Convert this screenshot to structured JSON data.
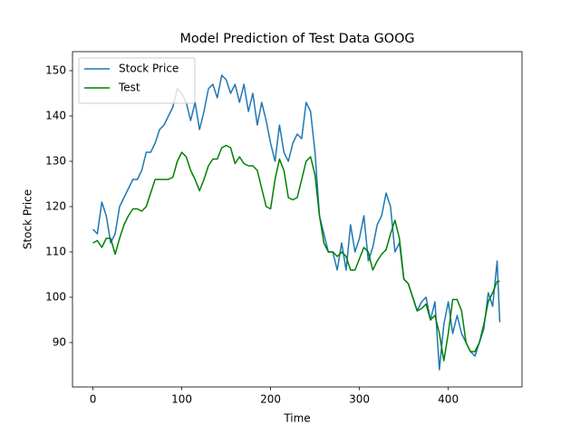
{
  "chart_data": {
    "type": "line",
    "title": "Model Prediction of Test Data GOOG",
    "x_label": "Time",
    "y_label": "Stock Price",
    "x": [
      0,
      5,
      10,
      15,
      20,
      25,
      30,
      35,
      40,
      45,
      50,
      55,
      60,
      65,
      70,
      75,
      80,
      85,
      90,
      95,
      100,
      105,
      110,
      115,
      120,
      125,
      130,
      135,
      140,
      145,
      150,
      155,
      160,
      165,
      170,
      175,
      180,
      185,
      190,
      195,
      200,
      205,
      210,
      215,
      220,
      225,
      230,
      235,
      240,
      245,
      250,
      255,
      260,
      265,
      270,
      275,
      280,
      285,
      290,
      295,
      300,
      305,
      310,
      315,
      320,
      325,
      330,
      335,
      340,
      345,
      350,
      355,
      360,
      365,
      370,
      375,
      380,
      385,
      390,
      395,
      400,
      405,
      410,
      415,
      420,
      425,
      430,
      435,
      440,
      445,
      450,
      455,
      458
    ],
    "series": [
      {
        "name": "Stock Price",
        "color": "#1f77b4",
        "values": [
          115,
          114,
          121,
          118,
          112,
          114,
          120,
          122,
          124,
          126,
          126,
          128,
          132,
          132,
          134,
          137,
          138,
          140,
          142,
          146,
          145,
          143,
          139,
          143,
          137,
          141,
          146,
          147,
          144,
          149,
          148,
          145,
          147,
          143,
          147,
          141,
          145,
          138,
          143,
          139,
          134,
          130,
          138,
          132,
          130,
          134,
          136,
          135,
          143,
          141,
          132,
          118,
          114,
          110,
          110,
          106,
          112,
          106,
          116,
          110,
          113,
          118,
          108,
          111,
          116,
          118,
          123,
          120,
          110,
          112,
          104,
          103,
          100,
          97,
          99,
          100,
          95,
          99,
          84,
          94,
          99,
          92,
          96,
          92,
          90,
          88,
          87,
          90,
          93,
          101,
          98,
          108,
          94.5
        ]
      },
      {
        "name": "Test",
        "color": "#008000",
        "values": [
          112,
          112.5,
          111,
          113,
          113,
          109.5,
          113,
          116,
          118,
          119.5,
          119.5,
          119,
          120,
          123,
          126,
          126,
          126,
          126,
          126.5,
          130,
          132,
          131,
          128,
          126,
          123.5,
          126,
          129,
          130.5,
          130.5,
          133,
          133.5,
          133,
          129.5,
          131,
          129.5,
          129,
          129,
          128,
          124,
          120,
          119.5,
          126,
          130.5,
          128,
          122,
          121.5,
          122,
          126,
          130,
          131,
          127,
          118,
          112,
          110,
          110,
          109,
          110,
          109,
          106,
          106,
          108.5,
          111,
          110,
          106,
          108,
          109.5,
          110.5,
          114,
          117,
          113,
          104,
          103,
          100,
          97,
          97.5,
          98.5,
          95,
          96,
          92,
          86,
          92,
          99.5,
          99.5,
          97,
          90,
          88,
          88,
          90,
          94,
          99,
          101,
          103.5,
          103.5
        ]
      }
    ],
    "xlim": [
      -23,
      483
    ],
    "ylim": [
      80.2,
      154.2
    ],
    "xticks": [
      0,
      100,
      200,
      300,
      400
    ],
    "yticks": [
      90,
      100,
      110,
      120,
      130,
      140,
      150
    ],
    "legend": "upper left"
  }
}
